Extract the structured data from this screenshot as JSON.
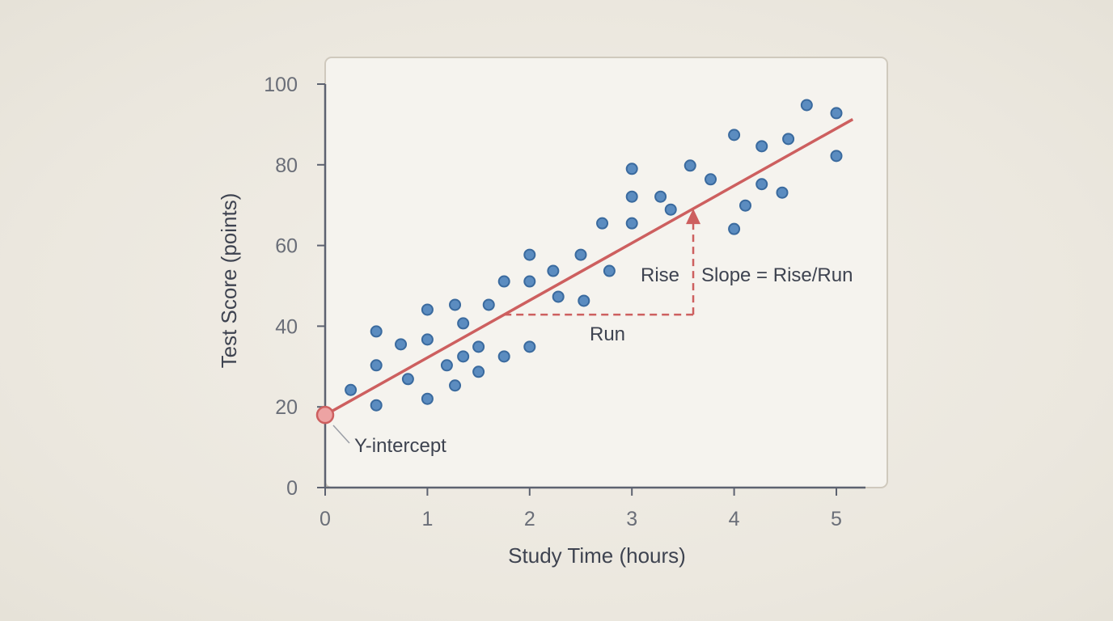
{
  "chart_data": {
    "type": "scatter",
    "xlabel": "Study Time (hours)",
    "ylabel": "Test Score (points)",
    "xlim": [
      0,
      5.3
    ],
    "ylim": [
      0,
      100
    ],
    "x_ticks": [
      "0",
      "1",
      "2",
      "3",
      "4",
      "5"
    ],
    "y_ticks": [
      "0",
      "20",
      "40",
      "60",
      "80",
      "100"
    ],
    "grid": false,
    "colors": {
      "points": "#5b8cc0",
      "point_edge": "#3a6a9e",
      "line": "#cd5f5f",
      "intercept": "#eda3a3"
    },
    "points": [
      [
        0.25,
        24.2
      ],
      [
        0.5,
        38.7
      ],
      [
        0.5,
        30.3
      ],
      [
        0.5,
        20.4
      ],
      [
        0.74,
        35.5
      ],
      [
        0.81,
        26.9
      ],
      [
        1.0,
        44.1
      ],
      [
        1.0,
        36.7
      ],
      [
        1.0,
        22.0
      ],
      [
        1.19,
        30.3
      ],
      [
        1.27,
        45.3
      ],
      [
        1.27,
        25.3
      ],
      [
        1.35,
        40.7
      ],
      [
        1.35,
        32.5
      ],
      [
        1.5,
        34.9
      ],
      [
        1.5,
        28.7
      ],
      [
        1.6,
        45.3
      ],
      [
        1.75,
        51.1
      ],
      [
        1.75,
        32.5
      ],
      [
        2.0,
        57.7
      ],
      [
        2.0,
        51.1
      ],
      [
        2.0,
        34.9
      ],
      [
        2.23,
        53.7
      ],
      [
        2.28,
        47.3
      ],
      [
        2.5,
        57.7
      ],
      [
        2.53,
        46.3
      ],
      [
        2.71,
        65.5
      ],
      [
        2.78,
        53.7
      ],
      [
        3.0,
        79.0
      ],
      [
        3.0,
        72.1
      ],
      [
        3.0,
        65.5
      ],
      [
        3.28,
        72.1
      ],
      [
        3.38,
        68.9
      ],
      [
        3.57,
        79.8
      ],
      [
        3.77,
        76.4
      ],
      [
        4.0,
        87.4
      ],
      [
        4.0,
        64.1
      ],
      [
        4.11,
        69.9
      ],
      [
        4.27,
        84.6
      ],
      [
        4.27,
        75.2
      ],
      [
        4.47,
        73.1
      ],
      [
        4.53,
        86.4
      ],
      [
        4.71,
        94.8
      ],
      [
        5.0,
        92.8
      ],
      [
        5.0,
        82.2
      ]
    ],
    "trend_line": {
      "intercept": 18,
      "slope": 14.2,
      "x_range": [
        0,
        5.16
      ]
    },
    "annotations": {
      "intercept_label": "Y-intercept",
      "run_label": "Run",
      "rise_label": "Rise",
      "slope_label": "Slope = Rise/Run",
      "run_from_x": 1.75,
      "run_to_x": 3.6
    }
  }
}
